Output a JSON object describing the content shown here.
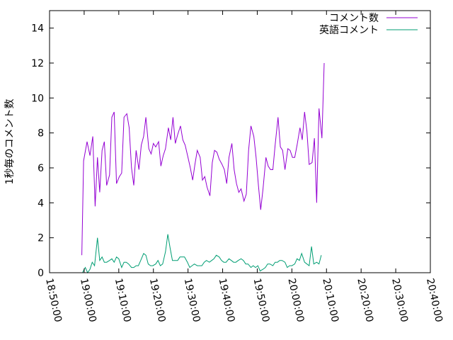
{
  "chart_data": {
    "type": "line",
    "ylabel": "1秒毎のコメント数",
    "xlabel": "",
    "title": "",
    "ylim": [
      0,
      15
    ],
    "yticks": [
      0,
      2,
      4,
      6,
      8,
      10,
      12,
      14
    ],
    "xlim": [
      "18:50:00",
      "20:40:00"
    ],
    "xticks": [
      "18:50:00",
      "19:00:00",
      "19:10:00",
      "19:20:00",
      "19:30:00",
      "19:40:00",
      "19:50:00",
      "20:00:00",
      "20:10:00",
      "20:20:00",
      "20:30:00",
      "20:40:00"
    ],
    "legend_position": "top-right",
    "grid": false,
    "series": [
      {
        "name": "コメント数",
        "color": "#9400d3",
        "points": [
          [
            "18:59:20",
            1.0
          ],
          [
            "18:59:50",
            6.4
          ],
          [
            "19:00:50",
            7.5
          ],
          [
            "19:01:40",
            6.7
          ],
          [
            "19:02:30",
            7.8
          ],
          [
            "19:03:10",
            3.8
          ],
          [
            "19:03:50",
            6.6
          ],
          [
            "19:04:30",
            4.6
          ],
          [
            "19:05:10",
            7.0
          ],
          [
            "19:05:50",
            7.5
          ],
          [
            "19:06:30",
            5.0
          ],
          [
            "19:07:20",
            5.6
          ],
          [
            "19:08:00",
            8.9
          ],
          [
            "19:08:40",
            9.2
          ],
          [
            "19:09:20",
            5.1
          ],
          [
            "19:10:10",
            5.5
          ],
          [
            "19:10:50",
            5.7
          ],
          [
            "19:11:30",
            8.9
          ],
          [
            "19:12:20",
            9.1
          ],
          [
            "19:13:00",
            8.3
          ],
          [
            "19:13:40",
            6.0
          ],
          [
            "19:14:20",
            5.0
          ],
          [
            "19:15:00",
            7.0
          ],
          [
            "19:15:50",
            5.9
          ],
          [
            "19:16:30",
            7.3
          ],
          [
            "19:17:10",
            7.8
          ],
          [
            "19:17:50",
            8.9
          ],
          [
            "19:18:40",
            7.1
          ],
          [
            "19:19:20",
            6.8
          ],
          [
            "19:20:00",
            7.4
          ],
          [
            "19:20:40",
            7.2
          ],
          [
            "19:21:30",
            7.5
          ],
          [
            "19:22:10",
            6.1
          ],
          [
            "19:22:50",
            6.7
          ],
          [
            "19:23:30",
            7.1
          ],
          [
            "19:24:20",
            8.3
          ],
          [
            "19:25:00",
            7.6
          ],
          [
            "19:25:40",
            8.9
          ],
          [
            "19:26:20",
            7.4
          ],
          [
            "19:27:00",
            7.9
          ],
          [
            "19:27:50",
            8.4
          ],
          [
            "19:28:30",
            7.6
          ],
          [
            "19:29:10",
            7.3
          ],
          [
            "19:30:00",
            6.6
          ],
          [
            "19:30:40",
            6.0
          ],
          [
            "19:31:20",
            5.3
          ],
          [
            "19:32:00",
            6.2
          ],
          [
            "19:32:40",
            7.0
          ],
          [
            "19:33:30",
            6.6
          ],
          [
            "19:34:10",
            5.3
          ],
          [
            "19:34:50",
            5.5
          ],
          [
            "19:35:30",
            4.9
          ],
          [
            "19:36:20",
            4.4
          ],
          [
            "19:37:00",
            6.3
          ],
          [
            "19:37:40",
            7.0
          ],
          [
            "19:38:20",
            6.9
          ],
          [
            "19:39:00",
            6.5
          ],
          [
            "19:39:50",
            6.2
          ],
          [
            "19:40:30",
            5.9
          ],
          [
            "19:41:10",
            5.1
          ],
          [
            "19:41:50",
            6.6
          ],
          [
            "19:42:40",
            7.4
          ],
          [
            "19:43:20",
            5.9
          ],
          [
            "19:44:00",
            5.1
          ],
          [
            "19:44:40",
            4.6
          ],
          [
            "19:45:20",
            4.8
          ],
          [
            "19:46:10",
            4.1
          ],
          [
            "19:46:50",
            4.5
          ],
          [
            "19:47:30",
            7.0
          ],
          [
            "19:48:10",
            8.4
          ],
          [
            "19:49:00",
            7.8
          ],
          [
            "19:49:40",
            6.6
          ],
          [
            "19:50:20",
            5.0
          ],
          [
            "19:51:00",
            3.6
          ],
          [
            "19:51:40",
            4.8
          ],
          [
            "19:52:30",
            6.6
          ],
          [
            "19:53:10",
            6.1
          ],
          [
            "19:53:50",
            5.9
          ],
          [
            "19:54:30",
            5.9
          ],
          [
            "19:55:10",
            7.3
          ],
          [
            "19:56:00",
            8.9
          ],
          [
            "19:56:40",
            7.2
          ],
          [
            "19:57:20",
            7.0
          ],
          [
            "19:58:00",
            5.9
          ],
          [
            "19:58:50",
            7.1
          ],
          [
            "19:59:30",
            7.0
          ],
          [
            "20:00:10",
            6.6
          ],
          [
            "20:00:50",
            6.6
          ],
          [
            "20:01:30",
            7.3
          ],
          [
            "20:02:20",
            8.3
          ],
          [
            "20:03:00",
            7.6
          ],
          [
            "20:03:40",
            9.2
          ],
          [
            "20:04:20",
            8.1
          ],
          [
            "20:05:00",
            6.2
          ],
          [
            "20:05:50",
            6.3
          ],
          [
            "20:06:30",
            7.7
          ],
          [
            "20:07:10",
            4.0
          ],
          [
            "20:07:50",
            9.4
          ],
          [
            "20:08:40",
            7.7
          ],
          [
            "20:09:20",
            12.0
          ]
        ]
      },
      {
        "name": "英語コメント",
        "color": "#009e73",
        "points": [
          [
            "18:59:30",
            0.0
          ],
          [
            "19:00:20",
            0.3
          ],
          [
            "19:01:00",
            0.0
          ],
          [
            "19:01:40",
            0.2
          ],
          [
            "19:02:20",
            0.6
          ],
          [
            "19:03:00",
            0.4
          ],
          [
            "19:03:50",
            2.0
          ],
          [
            "19:04:30",
            0.7
          ],
          [
            "19:05:10",
            0.9
          ],
          [
            "19:05:50",
            0.6
          ],
          [
            "19:06:30",
            0.6
          ],
          [
            "19:07:20",
            0.7
          ],
          [
            "19:08:00",
            0.8
          ],
          [
            "19:08:40",
            0.6
          ],
          [
            "19:09:20",
            0.9
          ],
          [
            "19:10:00",
            0.8
          ],
          [
            "19:10:50",
            0.3
          ],
          [
            "19:11:30",
            0.6
          ],
          [
            "19:12:10",
            0.6
          ],
          [
            "19:12:50",
            0.5
          ],
          [
            "19:13:40",
            0.3
          ],
          [
            "19:14:20",
            0.3
          ],
          [
            "19:15:00",
            0.4
          ],
          [
            "19:15:40",
            0.4
          ],
          [
            "19:16:20",
            0.7
          ],
          [
            "19:17:10",
            1.1
          ],
          [
            "19:17:50",
            1.0
          ],
          [
            "19:18:30",
            0.5
          ],
          [
            "19:19:10",
            0.4
          ],
          [
            "19:19:50",
            0.4
          ],
          [
            "19:20:40",
            0.5
          ],
          [
            "19:21:20",
            0.7
          ],
          [
            "19:22:00",
            0.4
          ],
          [
            "19:22:40",
            0.5
          ],
          [
            "19:23:30",
            1.2
          ],
          [
            "19:24:10",
            2.2
          ],
          [
            "19:24:50",
            1.4
          ],
          [
            "19:25:30",
            0.7
          ],
          [
            "19:26:20",
            0.7
          ],
          [
            "19:27:00",
            0.7
          ],
          [
            "19:27:40",
            0.9
          ],
          [
            "19:28:20",
            0.9
          ],
          [
            "19:29:00",
            0.9
          ],
          [
            "19:29:50",
            0.6
          ],
          [
            "19:30:30",
            0.3
          ],
          [
            "19:31:10",
            0.4
          ],
          [
            "19:31:50",
            0.5
          ],
          [
            "19:32:40",
            0.4
          ],
          [
            "19:33:20",
            0.4
          ],
          [
            "19:34:00",
            0.4
          ],
          [
            "19:34:40",
            0.6
          ],
          [
            "19:35:20",
            0.7
          ],
          [
            "19:36:10",
            0.6
          ],
          [
            "19:36:50",
            0.7
          ],
          [
            "19:37:30",
            0.8
          ],
          [
            "19:38:10",
            1.0
          ],
          [
            "19:39:00",
            0.9
          ],
          [
            "19:39:40",
            0.7
          ],
          [
            "19:40:20",
            0.6
          ],
          [
            "19:41:00",
            0.6
          ],
          [
            "19:41:50",
            0.8
          ],
          [
            "19:42:30",
            0.7
          ],
          [
            "19:43:10",
            0.6
          ],
          [
            "19:43:50",
            0.6
          ],
          [
            "19:44:30",
            0.7
          ],
          [
            "19:45:20",
            0.8
          ],
          [
            "19:46:00",
            0.7
          ],
          [
            "19:46:40",
            0.5
          ],
          [
            "19:47:20",
            0.5
          ],
          [
            "19:48:10",
            0.3
          ],
          [
            "19:48:50",
            0.4
          ],
          [
            "19:49:30",
            0.3
          ],
          [
            "19:50:10",
            0.4
          ],
          [
            "19:50:50",
            0.1
          ],
          [
            "19:51:40",
            0.2
          ],
          [
            "19:52:20",
            0.3
          ],
          [
            "19:53:00",
            0.5
          ],
          [
            "19:53:40",
            0.5
          ],
          [
            "19:54:30",
            0.4
          ],
          [
            "19:55:10",
            0.6
          ],
          [
            "19:55:50",
            0.6
          ],
          [
            "19:56:30",
            0.7
          ],
          [
            "19:57:10",
            0.7
          ],
          [
            "19:58:00",
            0.6
          ],
          [
            "19:58:40",
            0.3
          ],
          [
            "19:59:20",
            0.4
          ],
          [
            "20:00:00",
            0.4
          ],
          [
            "20:00:50",
            0.5
          ],
          [
            "20:01:30",
            0.8
          ],
          [
            "20:02:10",
            0.7
          ],
          [
            "20:02:50",
            1.1
          ],
          [
            "20:03:40",
            0.6
          ],
          [
            "20:04:20",
            0.5
          ],
          [
            "20:05:00",
            0.4
          ],
          [
            "20:05:40",
            1.5
          ],
          [
            "20:06:20",
            0.5
          ],
          [
            "20:07:10",
            0.6
          ],
          [
            "20:07:50",
            0.5
          ],
          [
            "20:08:30",
            1.0
          ]
        ]
      }
    ]
  }
}
